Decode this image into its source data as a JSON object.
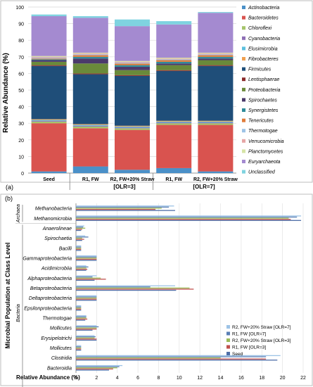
{
  "chart_data": [
    {
      "type": "bar",
      "stacked": true,
      "panel_label": "(a)",
      "ylabel": "Relative Abundance (%)",
      "ylim": [
        0,
        100
      ],
      "yticks": [
        0,
        10,
        20,
        30,
        40,
        50,
        60,
        70,
        80,
        90,
        100
      ],
      "categories": [
        "Seed",
        "R1, FW",
        "R2, FW+20% Straw",
        "R1, FW",
        "R2, FW+20% Straw"
      ],
      "group_labels": [
        "[OLR=3]",
        "[OLR=7]"
      ],
      "legend_position": "right",
      "series": [
        {
          "name": "Actinobacteria",
          "color": "#4a90c8",
          "values": [
            1,
            4,
            2,
            3,
            1
          ]
        },
        {
          "name": "Bacteroidetes",
          "color": "#d9534f",
          "values": [
            29,
            23,
            24,
            26,
            28
          ]
        },
        {
          "name": "Chloroflexi",
          "color": "#a5c46a",
          "values": [
            1,
            1,
            1,
            1,
            1
          ]
        },
        {
          "name": "Cyanobacteria",
          "color": "#8e6fb6",
          "values": [
            0.5,
            0.5,
            0.5,
            0.5,
            0.5
          ]
        },
        {
          "name": "Elusimicrobia",
          "color": "#5bc0de",
          "values": [
            0.5,
            0.5,
            0.5,
            0.5,
            0.5
          ]
        },
        {
          "name": "Fibrobacteres",
          "color": "#f0a050",
          "values": [
            0.5,
            0.5,
            0.5,
            0.5,
            0.5
          ]
        },
        {
          "name": "Firmicutes",
          "color": "#1f4e79",
          "values": [
            32,
            30,
            30,
            30,
            33
          ]
        },
        {
          "name": "Lentisphaerae",
          "color": "#8b2c2c",
          "values": [
            0.5,
            0.5,
            0.5,
            0.5,
            0.5
          ]
        },
        {
          "name": "Proteobacteria",
          "color": "#6a8a3a",
          "values": [
            2,
            6,
            3,
            3,
            3
          ]
        },
        {
          "name": "Spirochaetes",
          "color": "#4b3a6b",
          "values": [
            1,
            3,
            2,
            1,
            1
          ]
        },
        {
          "name": "Synergistetes",
          "color": "#2e8b9a",
          "values": [
            0.5,
            1,
            1,
            1,
            1
          ]
        },
        {
          "name": "Tenericutes",
          "color": "#e07b39",
          "values": [
            0.5,
            1,
            1,
            1,
            1
          ]
        },
        {
          "name": "Thermotogae",
          "color": "#9dc3e6",
          "values": [
            0.5,
            0.5,
            0.5,
            0.5,
            0.5
          ]
        },
        {
          "name": "Verrucomicrobia",
          "color": "#e6a6a6",
          "values": [
            0.5,
            0.5,
            0.5,
            0.5,
            0.5
          ]
        },
        {
          "name": "Planctomycetes",
          "color": "#d6e4a6",
          "values": [
            0.5,
            0.5,
            0.5,
            0.5,
            0.5
          ]
        },
        {
          "name": "Euryarchaeota",
          "color": "#a48ad0",
          "values": [
            24,
            21,
            21,
            20,
            24
          ]
        },
        {
          "name": "Unclassified",
          "color": "#7fd3e0",
          "values": [
            1,
            1,
            4,
            2,
            0.5
          ]
        }
      ]
    },
    {
      "type": "bar",
      "orientation": "horizontal",
      "panel_label": "(b)",
      "ylabel": "Microbial Population at Class Level",
      "xlabel": "Relative Abundance (%)",
      "xlim": [
        0,
        22
      ],
      "xticks": [
        0,
        2,
        4,
        6,
        8,
        10,
        12,
        14,
        16,
        18,
        20,
        22
      ],
      "groups": [
        {
          "name": "Archaea",
          "start": 0,
          "end": 1
        },
        {
          "name": "Bacteria",
          "start": 2,
          "end": 19
        }
      ],
      "categories": [
        "Methanobacteria",
        "Methanomicrobia",
        "Anaerolineae",
        "Spirochaetia",
        "Bacilli",
        "Gammaproteobacteria",
        "Acidimicrobiia",
        "Alphaproteobacteria",
        "Betaproteobacteria",
        "Deltaproteobacteria",
        "Epsilonproteobacteria",
        "Thermotogae",
        "Mollicutes",
        "Erysipelotrichi",
        "Mollicutes",
        "Clostridia",
        "Bacteroidia"
      ],
      "legend_position": "center-right",
      "series": [
        {
          "name": "R2, FW+20% Straw [OLR=7]",
          "color": "#9dc3e6",
          "values": [
            9.5,
            21.8,
            0.8,
            0.9,
            0.5,
            2.0,
            1.0,
            2.0,
            9.6,
            2.0,
            0.5,
            1.0,
            2.0,
            1.8,
            0.5,
            19.8,
            4.5
          ]
        },
        {
          "name": "R1, FW [OLR=7]",
          "color": "#5a7fb5",
          "values": [
            9.0,
            21.4,
            0.7,
            1.2,
            0.5,
            2.0,
            1.2,
            1.6,
            7.2,
            2.0,
            0.5,
            1.0,
            2.2,
            1.9,
            0.5,
            18.4,
            4.2
          ]
        },
        {
          "name": "R2, FW+20% Straw [OLR=3]",
          "color": "#9bbb59",
          "values": [
            8.3,
            20.6,
            0.9,
            0.6,
            0.5,
            2.0,
            1.0,
            2.4,
            11.0,
            2.0,
            0.5,
            1.0,
            2.0,
            1.8,
            0.5,
            14.0,
            4.0
          ]
        },
        {
          "name": "R1, FW [OLR=3]",
          "color": "#c0504d",
          "values": [
            7.7,
            20.8,
            0.6,
            0.8,
            0.5,
            2.0,
            1.1,
            2.9,
            11.4,
            2.0,
            0.5,
            1.1,
            2.0,
            2.0,
            0.5,
            18.4,
            3.6
          ]
        },
        {
          "name": "Seed",
          "color": "#4f6ea8",
          "values": [
            9.6,
            21.8,
            0.5,
            0.6,
            0.5,
            2.0,
            1.0,
            1.8,
            9.7,
            2.0,
            0.5,
            0.9,
            1.6,
            2.0,
            0.5,
            19.5,
            3.2
          ]
        }
      ]
    }
  ]
}
